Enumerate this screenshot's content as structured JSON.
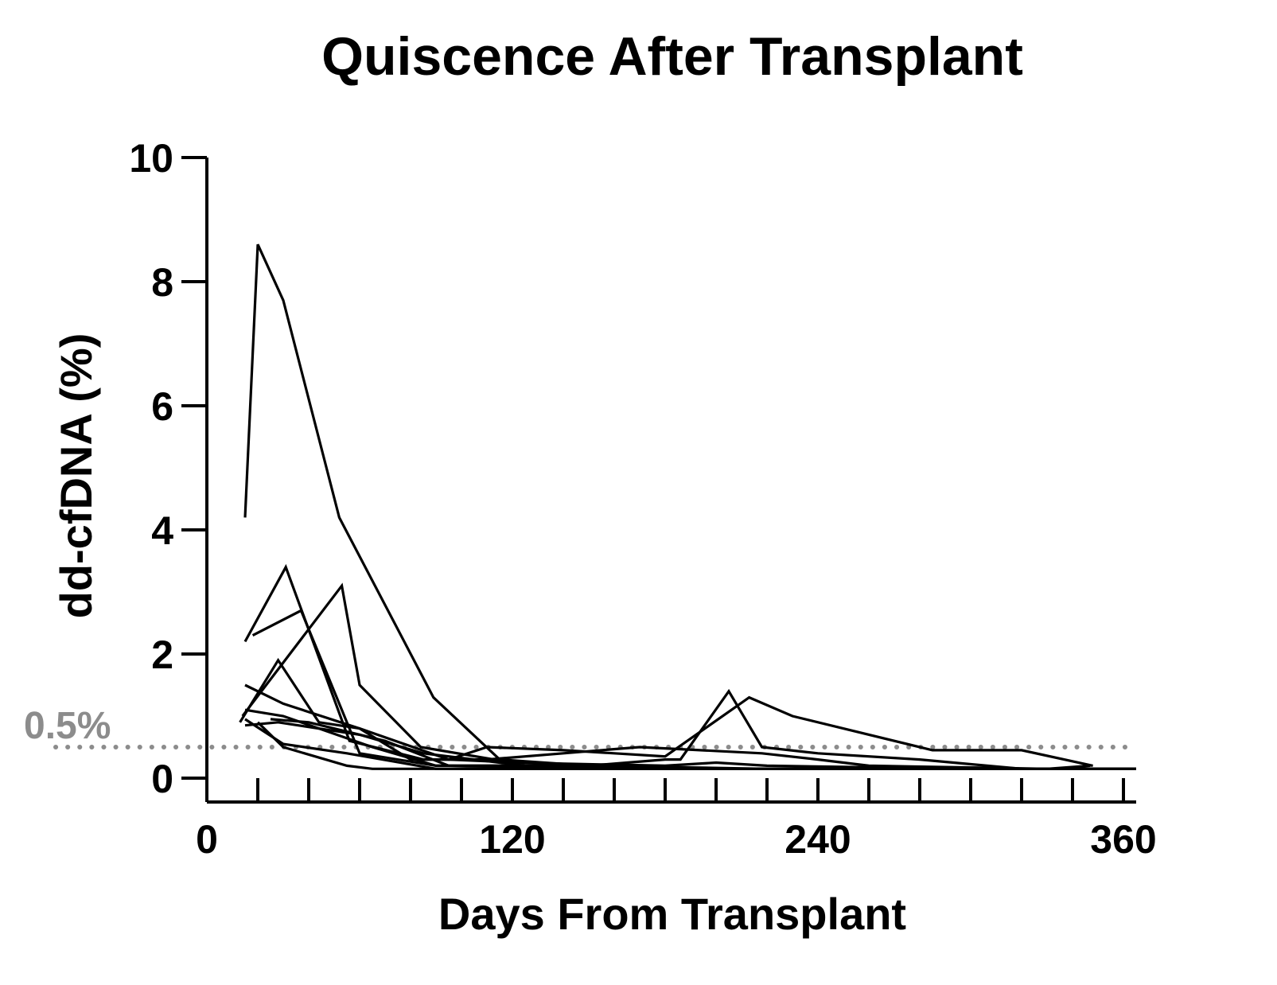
{
  "chart_data": {
    "type": "line",
    "title": "Quiscence After Transplant",
    "xlabel": "Days From Transplant",
    "ylabel": "dd-cfDNA (%)",
    "xlim": [
      0,
      365
    ],
    "ylim": [
      0,
      10
    ],
    "x_ticks": [
      0,
      120,
      240,
      360
    ],
    "x_tick_labels": [
      "0",
      "120",
      "240",
      "360"
    ],
    "x_minor_ticks": [
      20,
      40,
      60,
      80,
      100,
      140,
      160,
      180,
      200,
      220,
      260,
      280,
      300,
      320,
      340
    ],
    "y_ticks": [
      0,
      2,
      4,
      6,
      8,
      10
    ],
    "y_tick_labels": [
      "0",
      "2",
      "4",
      "6",
      "8",
      "10"
    ],
    "grid": false,
    "legend": "none",
    "line_color": "#000000",
    "threshold": {
      "value": 0.5,
      "label": "0.5%",
      "color": "#8c8c8c",
      "style": "dotted"
    },
    "series": [
      {
        "x": [
          15,
          20,
          30,
          52,
          89,
          115,
          150
        ],
        "y": [
          4.2,
          8.6,
          7.7,
          4.2,
          1.3,
          0.3,
          0.2
        ]
      },
      {
        "x": [
          15,
          31,
          56,
          85,
          110,
          140,
          170,
          218,
          240,
          260,
          330,
          347
        ],
        "y": [
          2.2,
          3.4,
          0.6,
          0.3,
          0.3,
          0.4,
          0.5,
          0.4,
          0.3,
          0.2,
          0.15,
          0.2
        ]
      },
      {
        "x": [
          18,
          37,
          60,
          90,
          150,
          200,
          240,
          365
        ],
        "y": [
          2.3,
          2.7,
          0.4,
          0.2,
          0.2,
          0.15,
          0.15,
          0.15
        ]
      },
      {
        "x": [
          13,
          28,
          44,
          60,
          95,
          150,
          220,
          300,
          362
        ],
        "y": [
          0.9,
          1.9,
          0.9,
          0.8,
          0.3,
          0.2,
          0.15,
          0.15,
          0.15
        ]
      },
      {
        "x": [
          14,
          53,
          60,
          84,
          120,
          180,
          200,
          220,
          300,
          362
        ],
        "y": [
          1.0,
          3.1,
          1.5,
          0.5,
          0.25,
          0.2,
          0.25,
          0.2,
          0.15,
          0.15
        ]
      },
      {
        "x": [
          15,
          30,
          60,
          80,
          95,
          110,
          140,
          180,
          213,
          230,
          285,
          320,
          348
        ],
        "y": [
          1.5,
          1.2,
          0.8,
          0.3,
          0.3,
          0.5,
          0.45,
          0.35,
          1.3,
          1.0,
          0.45,
          0.45,
          0.2
        ]
      },
      {
        "x": [
          15,
          30,
          65,
          90,
          120,
          170,
          200,
          230,
          270,
          320,
          365
        ],
        "y": [
          1.1,
          1.0,
          0.5,
          0.2,
          0.2,
          0.15,
          0.15,
          0.15,
          0.15,
          0.15,
          0.15
        ]
      },
      {
        "x": [
          15,
          28,
          60,
          85,
          105,
          125,
          150,
          180,
          186,
          205,
          218,
          240,
          280,
          320,
          365
        ],
        "y": [
          0.85,
          0.9,
          0.7,
          0.4,
          0.3,
          0.2,
          0.2,
          0.3,
          0.3,
          1.4,
          0.5,
          0.4,
          0.3,
          0.15,
          0.15
        ]
      },
      {
        "x": [
          15,
          30,
          55,
          90,
          150,
          220,
          300,
          365
        ],
        "y": [
          0.95,
          0.55,
          0.4,
          0.15,
          0.15,
          0.15,
          0.15,
          0.15
        ]
      },
      {
        "x": [
          20,
          30,
          55,
          65,
          120,
          200,
          300,
          365
        ],
        "y": [
          0.9,
          0.5,
          0.2,
          0.15,
          0.15,
          0.15,
          0.15,
          0.15
        ]
      },
      {
        "x": [
          25,
          40,
          70,
          95,
          150,
          220,
          365
        ],
        "y": [
          0.95,
          0.9,
          0.6,
          0.2,
          0.15,
          0.15,
          0.15
        ]
      }
    ]
  }
}
